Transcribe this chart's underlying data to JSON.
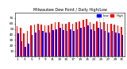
{
  "title": "Milwaukee Dew Point / Daily High/Low",
  "background_color": "#ffffff",
  "bar_width": 0.38,
  "high_color": "#ff0000",
  "low_color": "#0000ff",
  "legend_label_high": "High",
  "legend_label_low": "Low",
  "ylim": [
    0,
    80
  ],
  "yticks": [
    10,
    20,
    30,
    40,
    50,
    60,
    70
  ],
  "n_days": 31,
  "x_tick_labels": [
    "1",
    "",
    "3",
    "",
    "5",
    "",
    "7",
    "",
    "9",
    "",
    "11",
    "",
    "13",
    "",
    "15",
    "",
    "17",
    "",
    "19",
    "",
    "21",
    "",
    "23",
    "",
    "25",
    "",
    "27",
    "",
    "29",
    "",
    "31"
  ],
  "high_vals": [
    55,
    52,
    42,
    46,
    56,
    58,
    60,
    58,
    56,
    56,
    60,
    62,
    62,
    60,
    60,
    62,
    60,
    62,
    64,
    66,
    68,
    62,
    60,
    64,
    62,
    62,
    60,
    60,
    58,
    56,
    54
  ],
  "low_vals": [
    42,
    28,
    18,
    24,
    40,
    44,
    48,
    46,
    44,
    44,
    48,
    50,
    52,
    48,
    46,
    50,
    46,
    50,
    52,
    54,
    56,
    50,
    46,
    52,
    50,
    46,
    44,
    46,
    44,
    42,
    40
  ],
  "vline_positions": [
    23.5,
    24.5
  ]
}
